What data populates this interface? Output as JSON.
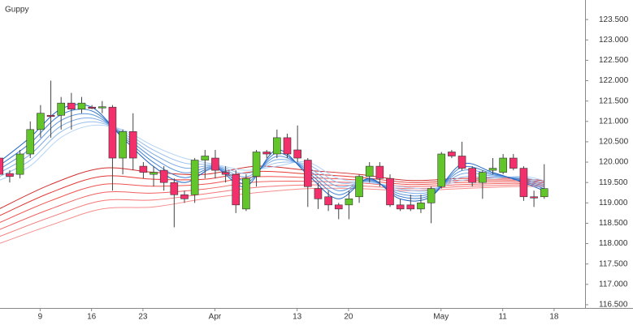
{
  "chart_data": {
    "type": "candlestick",
    "title": "Guppy",
    "grid": false,
    "up_color": "#62c52a",
    "down_color": "#f2306c",
    "categories": [
      null,
      null,
      null,
      null,
      "9",
      null,
      null,
      null,
      null,
      "16",
      null,
      null,
      null,
      null,
      "23",
      null,
      null,
      null,
      null,
      null,
      null,
      "Apr",
      null,
      null,
      null,
      null,
      null,
      null,
      null,
      "13",
      null,
      null,
      null,
      null,
      "20",
      null,
      null,
      null,
      null,
      null,
      null,
      null,
      null,
      "May",
      null,
      null,
      null,
      null,
      null,
      "11",
      null,
      null,
      null,
      null,
      "18"
    ],
    "open": [
      120.1,
      119.72,
      119.7,
      120.2,
      120.8,
      121.15,
      121.15,
      121.45,
      121.3,
      121.35,
      121.35,
      121.35,
      120.1,
      120.75,
      119.9,
      119.7,
      119.8,
      119.5,
      119.2,
      119.2,
      120.05,
      120.1,
      119.75,
      119.7,
      118.85,
      119.65,
      120.25,
      120.2,
      120.6,
      120.3,
      120.05,
      119.35,
      119.15,
      118.95,
      118.95,
      119.15,
      119.65,
      119.9,
      119.6,
      118.95,
      118.95,
      118.85,
      119.0,
      119.4,
      120.25,
      120.15,
      119.85,
      119.5,
      119.8,
      119.75,
      120.1,
      119.85,
      119.15,
      119.15,
      null
    ],
    "high": [
      120.2,
      119.8,
      120.3,
      121.0,
      121.4,
      122.0,
      121.6,
      121.7,
      121.6,
      121.4,
      121.5,
      121.4,
      120.8,
      121.2,
      120.0,
      119.9,
      119.9,
      119.6,
      119.3,
      120.1,
      120.3,
      120.3,
      119.9,
      119.8,
      119.7,
      120.3,
      120.3,
      120.8,
      120.7,
      120.9,
      120.1,
      119.5,
      119.3,
      119.0,
      119.3,
      119.7,
      120.0,
      120.0,
      119.7,
      119.1,
      119.2,
      119.2,
      119.4,
      120.25,
      120.3,
      120.5,
      119.9,
      119.8,
      120.1,
      120.2,
      120.2,
      119.9,
      119.3,
      119.95,
      null
    ],
    "low": [
      119.6,
      119.5,
      119.6,
      120.1,
      120.6,
      120.6,
      120.8,
      120.8,
      121.2,
      121.3,
      121.2,
      119.3,
      119.7,
      119.8,
      119.6,
      119.4,
      119.3,
      118.4,
      119.0,
      119.0,
      119.6,
      119.6,
      119.5,
      118.75,
      118.8,
      119.4,
      120.1,
      120.1,
      120.1,
      120.0,
      118.9,
      118.85,
      118.8,
      118.6,
      118.6,
      119.0,
      119.5,
      119.4,
      118.9,
      118.8,
      118.8,
      118.75,
      118.5,
      119.35,
      120.1,
      119.8,
      119.4,
      119.1,
      119.7,
      119.7,
      119.8,
      119.05,
      118.9,
      119.1,
      null
    ],
    "close": [
      119.7,
      119.65,
      120.2,
      120.8,
      121.2,
      121.12,
      121.45,
      121.3,
      121.45,
      121.34,
      121.36,
      120.1,
      120.75,
      120.1,
      119.75,
      119.75,
      119.5,
      119.2,
      119.1,
      120.05,
      120.15,
      119.8,
      119.7,
      118.95,
      119.6,
      120.25,
      120.2,
      120.6,
      120.2,
      120.1,
      119.4,
      119.1,
      118.95,
      118.85,
      119.1,
      119.65,
      119.9,
      119.6,
      118.95,
      118.85,
      118.85,
      119.0,
      119.35,
      120.2,
      120.15,
      119.85,
      119.5,
      119.75,
      119.85,
      120.1,
      119.85,
      119.15,
      119.14,
      119.35,
      null
    ],
    "series": [
      {
        "type": "line",
        "color": "#f78d8d",
        "x": [
          0,
          5,
          10,
          15,
          20,
          25,
          30,
          35,
          40,
          45,
          50,
          53
        ],
        "values": [
          118.0,
          118.45,
          118.85,
          118.9,
          119.1,
          119.25,
          119.35,
          119.35,
          119.3,
          119.35,
          119.4,
          119.4
        ]
      },
      {
        "type": "line",
        "color": "#f47777",
        "x": [
          0,
          5,
          10,
          15,
          20,
          25,
          30,
          35,
          40,
          45,
          50,
          53
        ],
        "values": [
          118.17,
          118.65,
          119.05,
          119.07,
          119.22,
          119.38,
          119.44,
          119.42,
          119.35,
          119.4,
          119.44,
          119.43
        ]
      },
      {
        "type": "line",
        "color": "#f06262",
        "x": [
          0,
          5,
          10,
          15,
          20,
          25,
          30,
          35,
          40,
          45,
          50,
          53
        ],
        "values": [
          118.34,
          118.85,
          119.25,
          119.24,
          119.34,
          119.51,
          119.53,
          119.49,
          119.4,
          119.45,
          119.48,
          119.46
        ]
      },
      {
        "type": "line",
        "color": "#ef5350",
        "x": [
          0,
          5,
          10,
          15,
          20,
          25,
          30,
          35,
          40,
          45,
          50,
          53
        ],
        "values": [
          118.51,
          119.05,
          119.45,
          119.41,
          119.46,
          119.64,
          119.62,
          119.56,
          119.45,
          119.5,
          119.52,
          119.49
        ]
      },
      {
        "type": "line",
        "color": "#e53935",
        "x": [
          0,
          5,
          10,
          15,
          20,
          25,
          30,
          35,
          40,
          45,
          50,
          53
        ],
        "values": [
          118.68,
          119.25,
          119.65,
          119.58,
          119.58,
          119.77,
          119.71,
          119.63,
          119.5,
          119.55,
          119.56,
          119.52
        ]
      },
      {
        "type": "line",
        "color": "#d32f2f",
        "x": [
          0,
          5,
          10,
          15,
          20,
          25,
          30,
          35,
          40,
          45,
          50,
          53
        ],
        "values": [
          118.85,
          119.45,
          119.85,
          119.75,
          119.7,
          119.9,
          119.8,
          119.7,
          119.55,
          119.6,
          119.6,
          119.55
        ]
      },
      {
        "type": "line",
        "color": "#b3d3f5",
        "x": [
          0,
          3,
          6,
          9,
          12,
          15,
          18,
          21,
          24,
          27,
          30,
          33,
          36,
          39,
          42,
          45,
          48,
          51,
          53
        ],
        "values": [
          119.55,
          119.9,
          120.6,
          120.9,
          120.8,
          120.4,
          120.1,
          119.95,
          119.8,
          119.9,
          120.0,
          119.6,
          119.5,
          119.4,
          119.35,
          119.55,
          119.6,
          119.65,
          119.55
        ]
      },
      {
        "type": "line",
        "color": "#97bfee",
        "x": [
          0,
          3,
          6,
          9,
          12,
          15,
          18,
          21,
          24,
          27,
          30,
          33,
          36,
          39,
          42,
          45,
          48,
          51,
          53
        ],
        "values": [
          119.64,
          120.04,
          120.74,
          120.99,
          120.76,
          120.3,
          119.98,
          119.93,
          119.72,
          119.98,
          119.94,
          119.5,
          119.52,
          119.34,
          119.31,
          119.63,
          119.63,
          119.62,
          119.5
        ]
      },
      {
        "type": "line",
        "color": "#7aaae5",
        "x": [
          0,
          3,
          6,
          9,
          12,
          15,
          18,
          21,
          24,
          27,
          30,
          33,
          36,
          39,
          42,
          45,
          48,
          51,
          53
        ],
        "values": [
          119.73,
          120.18,
          120.88,
          121.08,
          120.72,
          120.2,
          119.86,
          119.91,
          119.64,
          120.06,
          119.88,
          119.4,
          119.54,
          119.28,
          119.27,
          119.71,
          119.66,
          119.59,
          119.45
        ]
      },
      {
        "type": "line",
        "color": "#5c95dc",
        "x": [
          0,
          3,
          6,
          9,
          12,
          15,
          18,
          21,
          24,
          27,
          30,
          33,
          36,
          39,
          42,
          45,
          48,
          51,
          53
        ],
        "values": [
          119.82,
          120.32,
          121.02,
          121.17,
          120.68,
          120.1,
          119.74,
          119.89,
          119.56,
          120.14,
          119.82,
          119.3,
          119.56,
          119.22,
          119.23,
          119.79,
          119.69,
          119.56,
          119.4
        ]
      },
      {
        "type": "line",
        "color": "#3d7fd1",
        "x": [
          0,
          3,
          6,
          9,
          12,
          15,
          18,
          21,
          24,
          27,
          30,
          33,
          36,
          39,
          42,
          45,
          48,
          51,
          53
        ],
        "values": [
          119.91,
          120.46,
          121.16,
          121.26,
          120.64,
          120.0,
          119.62,
          119.87,
          119.48,
          120.22,
          119.76,
          119.2,
          119.58,
          119.16,
          119.19,
          119.87,
          119.72,
          119.53,
          119.35
        ]
      },
      {
        "type": "line",
        "color": "#1e63c4",
        "x": [
          0,
          3,
          6,
          9,
          12,
          15,
          18,
          21,
          24,
          27,
          30,
          33,
          36,
          39,
          42,
          45,
          48,
          51,
          53
        ],
        "values": [
          120.0,
          120.6,
          121.3,
          121.35,
          120.6,
          119.9,
          119.5,
          119.85,
          119.4,
          120.3,
          119.7,
          119.1,
          119.6,
          119.1,
          119.15,
          119.95,
          119.75,
          119.5,
          119.3
        ]
      }
    ],
    "ylim": [
      116.42,
      123.98
    ],
    "yticks": [
      {
        "value": 116.5,
        "label": "116.500"
      },
      {
        "value": 117,
        "label": "117.000"
      },
      {
        "value": 117.5,
        "label": "117.500"
      },
      {
        "value": 118,
        "label": "118.000"
      },
      {
        "value": 118.5,
        "label": "118.500"
      },
      {
        "value": 119,
        "label": "119.000"
      },
      {
        "value": 119.5,
        "label": "119.500"
      },
      {
        "value": 120,
        "label": "120.000"
      },
      {
        "value": 120.5,
        "label": "120.500"
      },
      {
        "value": 121,
        "label": "121.000"
      },
      {
        "value": 121.5,
        "label": "121.500"
      },
      {
        "value": 122,
        "label": "122.000"
      },
      {
        "value": 122.5,
        "label": "122.500"
      },
      {
        "value": 123,
        "label": "123.000"
      },
      {
        "value": 123.5,
        "label": "123.500"
      }
    ]
  }
}
